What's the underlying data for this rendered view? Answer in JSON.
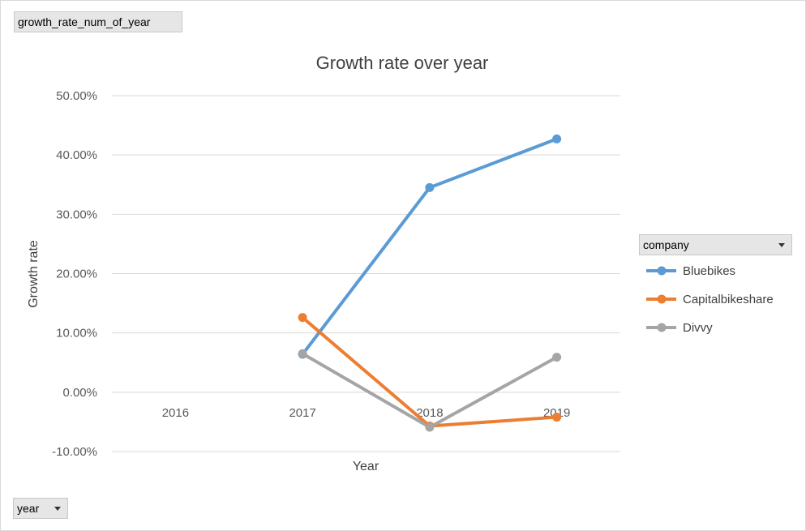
{
  "pivot": {
    "measure_field": "growth_rate_num_of_year",
    "axis_field": "year",
    "legend_field": "company"
  },
  "icons": {
    "dropdown": "chevron-down-icon"
  },
  "chart_data": {
    "type": "line",
    "title": "Growth rate over year",
    "xlabel": "Year",
    "ylabel": "Growth rate",
    "categories": [
      "2016",
      "2017",
      "2018",
      "2019"
    ],
    "ylim": [
      -0.1,
      0.5
    ],
    "yticks": [
      -0.1,
      0.0,
      0.1,
      0.2,
      0.3,
      0.4,
      0.5
    ],
    "ytick_labels": [
      "-10.00%",
      "0.00%",
      "10.00%",
      "20.00%",
      "30.00%",
      "40.00%",
      "50.00%"
    ],
    "grid": true,
    "legend_position": "right",
    "series": [
      {
        "name": "Bluebikes",
        "color": "#5b9bd5",
        "values": [
          null,
          0.064,
          0.345,
          0.427
        ]
      },
      {
        "name": "Capitalbikeshare",
        "color": "#ed7d31",
        "values": [
          null,
          0.126,
          -0.057,
          -0.042
        ]
      },
      {
        "name": "Divvy",
        "color": "#a5a5a5",
        "values": [
          null,
          0.065,
          -0.059,
          0.059
        ]
      }
    ]
  }
}
